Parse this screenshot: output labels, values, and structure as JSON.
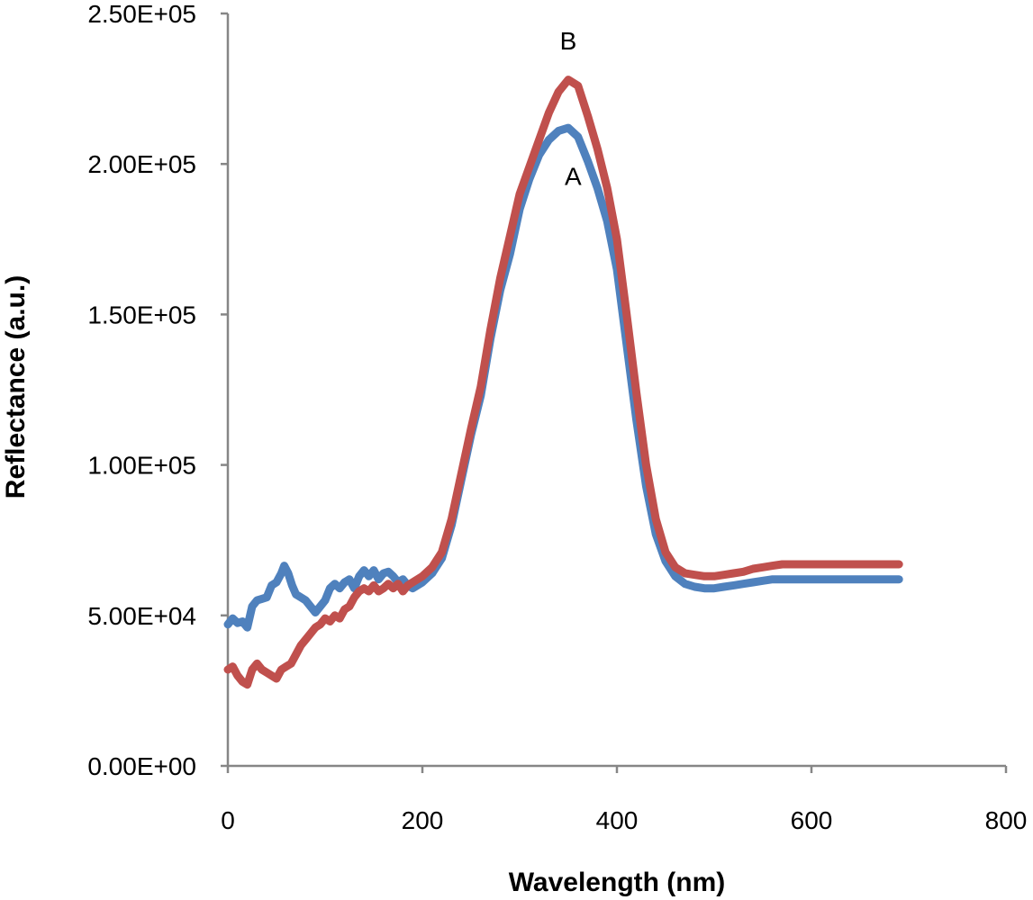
{
  "chart_data": {
    "type": "line",
    "title": "",
    "xlabel": "Wavelength (nm)",
    "ylabel": "Reflectance (a.u.)",
    "xlim": [
      0,
      800
    ],
    "ylim": [
      0,
      250000
    ],
    "x_ticks": [
      0,
      200,
      400,
      600,
      800
    ],
    "x_tick_labels": [
      "0",
      "200",
      "400",
      "600",
      "800"
    ],
    "y_ticks": [
      0,
      50000,
      100000,
      150000,
      200000,
      250000
    ],
    "y_tick_labels": [
      "0.00E+00",
      "5.00E+04",
      "1.00E+05",
      "1.50E+05",
      "2.00E+05",
      "2.50E+05"
    ],
    "grid": false,
    "legend": "none",
    "series": [
      {
        "name": "A",
        "color": "#4f81bd",
        "label_at": [
          355,
          196000
        ],
        "x": [
          0,
          5,
          10,
          15,
          20,
          25,
          30,
          35,
          40,
          45,
          50,
          55,
          58,
          62,
          66,
          70,
          75,
          80,
          85,
          90,
          95,
          100,
          105,
          110,
          115,
          120,
          125,
          130,
          135,
          140,
          145,
          150,
          155,
          160,
          165,
          170,
          175,
          180,
          185,
          190,
          200,
          210,
          220,
          230,
          240,
          250,
          260,
          270,
          280,
          290,
          300,
          310,
          320,
          330,
          340,
          350,
          360,
          370,
          380,
          390,
          400,
          410,
          420,
          430,
          440,
          450,
          460,
          470,
          480,
          490,
          500,
          510,
          520,
          530,
          540,
          550,
          560,
          570,
          580,
          590,
          600,
          620,
          650,
          690
        ],
        "y": [
          47000,
          49000,
          47500,
          48000,
          46000,
          53000,
          55000,
          55500,
          56000,
          60000,
          61000,
          64000,
          66500,
          64000,
          60000,
          57000,
          56000,
          55000,
          53000,
          51000,
          53000,
          55000,
          59000,
          60500,
          59000,
          61000,
          62000,
          59000,
          63000,
          65000,
          63000,
          65000,
          62000,
          64000,
          64500,
          63000,
          61000,
          62000,
          60000,
          59000,
          61000,
          64000,
          69000,
          80000,
          95000,
          110000,
          123000,
          142000,
          158000,
          170000,
          185000,
          195000,
          203000,
          208000,
          211000,
          212000,
          209000,
          201000,
          192000,
          181000,
          165000,
          140000,
          115000,
          93000,
          77000,
          68000,
          63000,
          60500,
          59500,
          59000,
          59000,
          59500,
          60000,
          60500,
          61000,
          61500,
          62000,
          62000,
          62000,
          62000,
          62000,
          62000,
          62000,
          62000
        ]
      },
      {
        "name": "B",
        "color": "#c0504d",
        "label_at": [
          350,
          241000
        ],
        "x": [
          0,
          5,
          10,
          15,
          20,
          25,
          30,
          35,
          40,
          45,
          50,
          55,
          60,
          65,
          70,
          75,
          80,
          85,
          90,
          95,
          100,
          105,
          110,
          115,
          120,
          125,
          130,
          135,
          140,
          145,
          150,
          155,
          160,
          165,
          170,
          175,
          180,
          185,
          190,
          200,
          210,
          220,
          230,
          240,
          250,
          260,
          270,
          280,
          290,
          300,
          310,
          320,
          330,
          340,
          350,
          360,
          370,
          380,
          390,
          400,
          410,
          420,
          430,
          440,
          450,
          460,
          470,
          480,
          490,
          500,
          510,
          520,
          530,
          540,
          550,
          560,
          570,
          580,
          590,
          600,
          620,
          650,
          690
        ],
        "y": [
          32000,
          33000,
          30000,
          28000,
          27000,
          32000,
          34000,
          32000,
          31000,
          30000,
          29000,
          32000,
          33000,
          34000,
          37000,
          40000,
          42000,
          44000,
          46000,
          47000,
          49000,
          48000,
          50000,
          49000,
          52000,
          53000,
          56000,
          58000,
          59000,
          58000,
          60000,
          58000,
          59000,
          60500,
          59000,
          60500,
          58000,
          60000,
          61000,
          63000,
          66000,
          71000,
          82000,
          97000,
          112000,
          126000,
          145000,
          162000,
          176000,
          190000,
          199000,
          208000,
          217000,
          224000,
          228000,
          226000,
          216000,
          205000,
          192000,
          175000,
          150000,
          124000,
          100000,
          82000,
          71000,
          66000,
          64000,
          63500,
          63000,
          63000,
          63500,
          64000,
          64500,
          65500,
          66000,
          66500,
          67000,
          67000,
          67000,
          67000,
          67000,
          67000,
          67000
        ]
      }
    ]
  }
}
